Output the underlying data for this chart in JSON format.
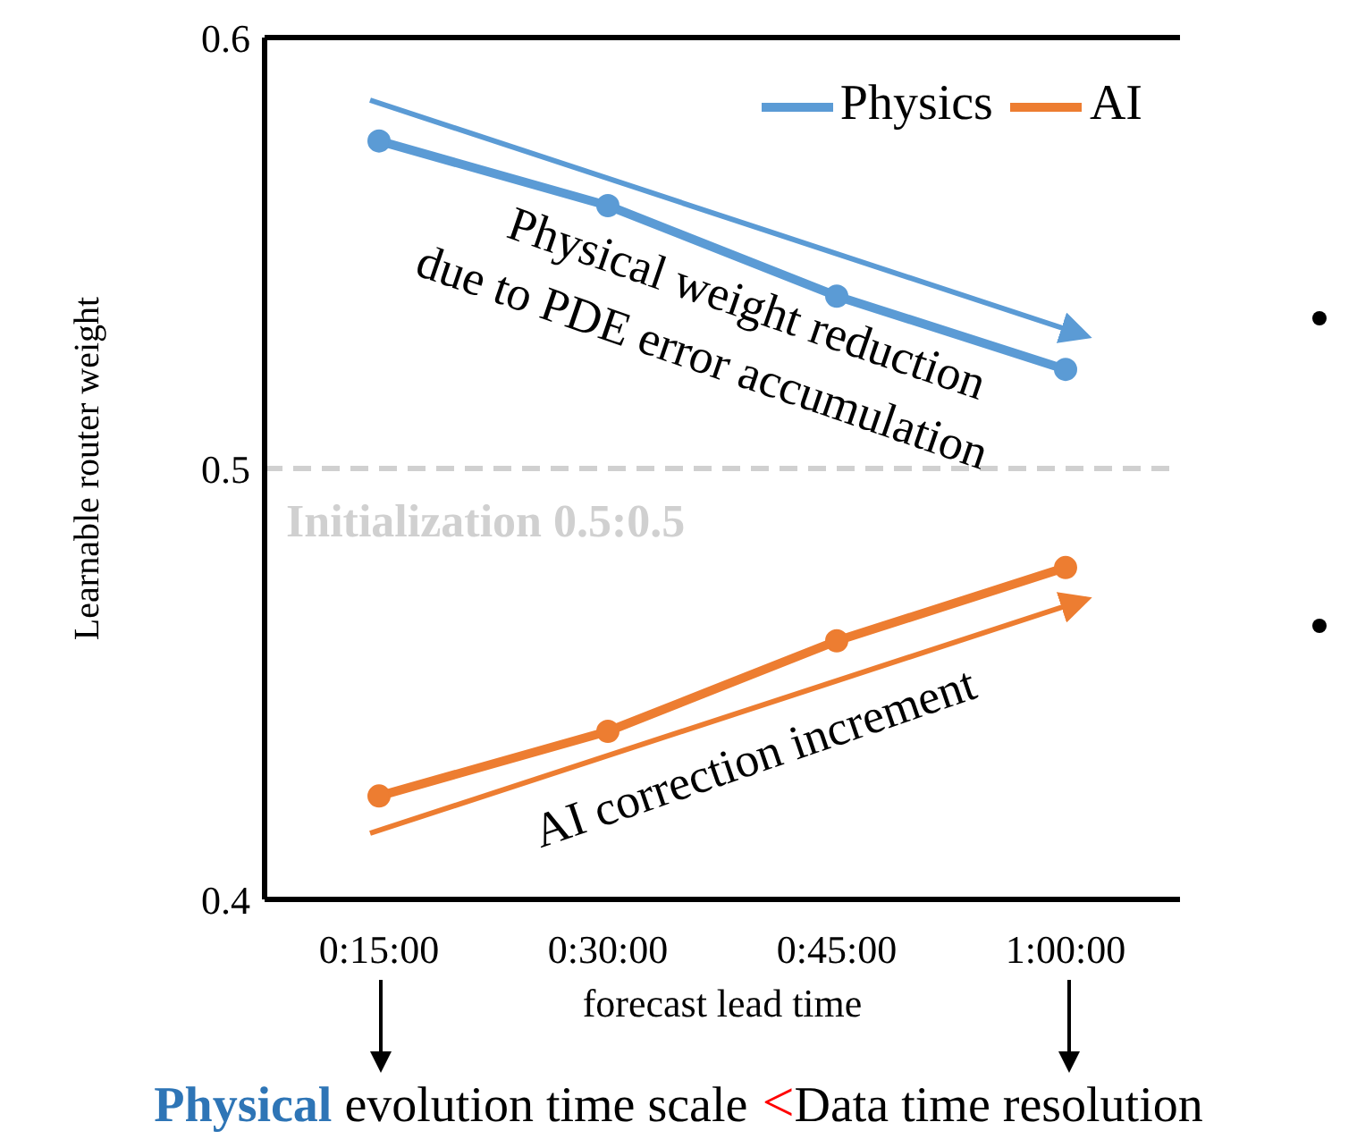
{
  "chart_data": {
    "type": "line",
    "ylabel": "Learnable router weight",
    "xlabel": "forecast lead time",
    "categories": [
      "0:15:00",
      "0:30:00",
      "0:45:00",
      "1:00:00"
    ],
    "series": [
      {
        "name": "Physics",
        "color": "#5b9bd5",
        "values": [
          0.576,
          0.561,
          0.54,
          0.523
        ]
      },
      {
        "name": "AI",
        "color": "#ed7d31",
        "values": [
          0.424,
          0.439,
          0.46,
          0.477
        ]
      }
    ],
    "ylim": [
      0.4,
      0.6
    ],
    "yticks": [
      {
        "value": 0.4,
        "label": "0.4"
      },
      {
        "value": 0.5,
        "label": "0.5"
      },
      {
        "value": 0.6,
        "label": "0.6"
      }
    ],
    "ref_lines": [
      {
        "axis": "y",
        "value": 0.5,
        "label": "Initialization 0.5:0.5",
        "color": "#d0d0d0",
        "line_style": "dashed"
      }
    ],
    "annotations": [
      "Physical weight reduction",
      "due to PDE error accumulation",
      "AI correction increment",
      "Physical",
      "evolution time scale",
      "<",
      "Data time resolution"
    ],
    "legend": "top right",
    "grid": false,
    "marker": "circle",
    "line_style": "solid"
  }
}
